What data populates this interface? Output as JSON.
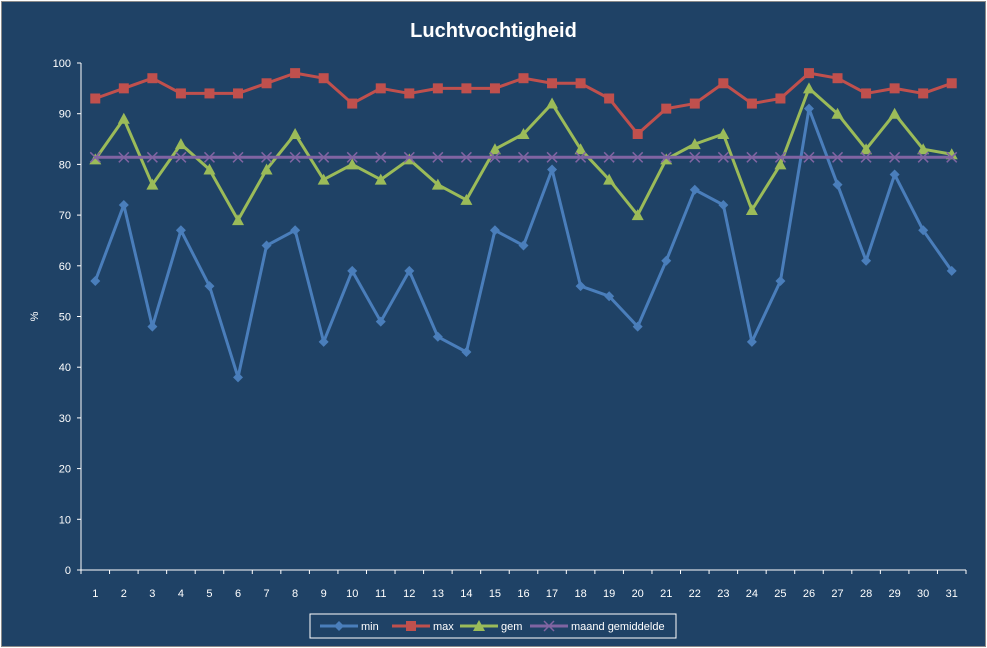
{
  "chart_data": {
    "type": "line",
    "title": "Luchtvochtigheid",
    "xlabel": "",
    "ylabel": "%",
    "ylim": [
      0,
      100
    ],
    "ytick_step": 10,
    "categories": [
      "1",
      "2",
      "3",
      "4",
      "5",
      "6",
      "7",
      "8",
      "9",
      "10",
      "11",
      "12",
      "13",
      "14",
      "15",
      "16",
      "17",
      "18",
      "19",
      "20",
      "21",
      "22",
      "23",
      "24",
      "25",
      "26",
      "27",
      "28",
      "29",
      "30",
      "31"
    ],
    "grid": false,
    "legend_position": "bottom",
    "series": [
      {
        "name": "min",
        "color": "#4a7ebb",
        "marker": "diamond",
        "values": [
          57,
          72,
          48,
          67,
          56,
          38,
          64,
          67,
          45,
          59,
          49,
          59,
          46,
          43,
          67,
          64,
          79,
          56,
          54,
          48,
          61,
          75,
          72,
          45,
          57,
          91,
          76,
          61,
          78,
          67,
          59
        ]
      },
      {
        "name": "max",
        "color": "#c0504d",
        "marker": "square",
        "values": [
          93,
          95,
          97,
          94,
          94,
          94,
          96,
          98,
          97,
          92,
          95,
          94,
          95,
          95,
          95,
          97,
          96,
          96,
          93,
          86,
          91,
          92,
          96,
          92,
          93,
          98,
          97,
          94,
          95,
          94,
          96
        ]
      },
      {
        "name": "gem",
        "color": "#9bbb59",
        "marker": "triangle",
        "values": [
          81,
          89,
          76,
          84,
          79,
          69,
          79,
          86,
          77,
          80,
          77,
          81,
          76,
          73,
          83,
          86,
          92,
          83,
          77,
          70,
          81,
          84,
          86,
          71,
          80,
          95,
          90,
          83,
          90,
          83,
          82
        ]
      },
      {
        "name": "maand gemiddelde",
        "color": "#8064a2",
        "marker": "x",
        "values": [
          81.4,
          81.4,
          81.4,
          81.4,
          81.4,
          81.4,
          81.4,
          81.4,
          81.4,
          81.4,
          81.4,
          81.4,
          81.4,
          81.4,
          81.4,
          81.4,
          81.4,
          81.4,
          81.4,
          81.4,
          81.4,
          81.4,
          81.4,
          81.4,
          81.4,
          81.4,
          81.4,
          81.4,
          81.4,
          81.4,
          81.4
        ]
      }
    ]
  }
}
